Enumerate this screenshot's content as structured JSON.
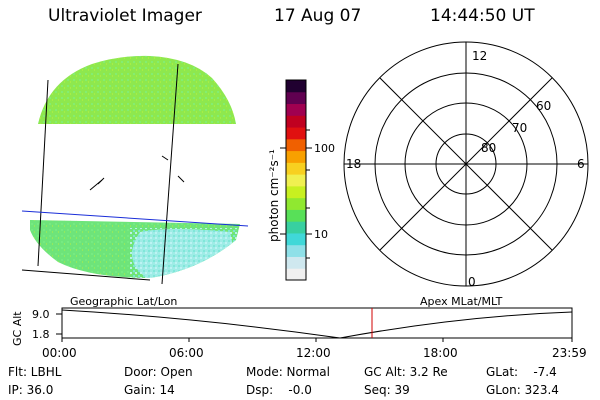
{
  "header": {
    "instrument": "Ultraviolet Imager",
    "date": "17 Aug 07",
    "time": "14:44:50 UT"
  },
  "colorbar": {
    "unit_label": "photon cm⁻²s⁻¹",
    "ticks": [
      "100",
      "10"
    ],
    "colors": [
      "#f0f0f0",
      "#cfe8ef",
      "#8fe0e8",
      "#40d8d8",
      "#38d0a0",
      "#58e058",
      "#90e830",
      "#c8f020",
      "#f0f050",
      "#f8d020",
      "#f8a000",
      "#f06000",
      "#e01010",
      "#c00020",
      "#a00050",
      "#600050",
      "#200030"
    ]
  },
  "polar_plot": {
    "mlt_labels": {
      "top": "12",
      "right": "6",
      "bottom": "0",
      "left": "18"
    },
    "lat_labels": [
      "80",
      "70",
      "60"
    ]
  },
  "timeline": {
    "left_label": "Geographic Lat/Lon",
    "right_label": "Apex  MLat/MLT",
    "axis_title": "GC Alt",
    "yticks": [
      "9.0",
      "1.8"
    ],
    "xticks": [
      "00:00",
      "06:00",
      "12:00",
      "18:00",
      "23:59"
    ]
  },
  "info": {
    "filter": "Flt: LBHL",
    "ip": "IP: 36.0",
    "door": "Door: Open",
    "gain": "Gain: 14",
    "mode": "Mode: Normal",
    "dsp": "Dsp:    -0.0",
    "gc_alt": "GC Alt: 3.2 Re",
    "seq": "Seq: 39",
    "glat": "GLat:    -7.4",
    "glon": "GLon: 323.4"
  }
}
